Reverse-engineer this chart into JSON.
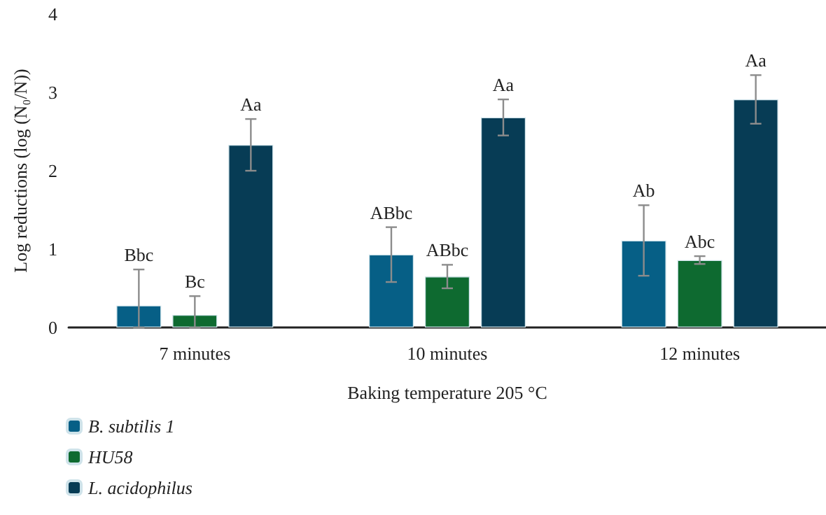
{
  "chart_data": {
    "type": "bar",
    "xlabel": "Baking temperature 205 °C",
    "ylabel": "Log reductions (log (N₀/N))",
    "categories": [
      "7 minutes",
      "10 minutes",
      "12 minutes"
    ],
    "series": [
      {
        "name": "B. subtilis 1",
        "color": "#065f86",
        "values": [
          0.28,
          0.93,
          1.11
        ],
        "errors": [
          [
            0,
            0.74
          ],
          0.35,
          0.45
        ],
        "value_labels": [
          "Bbc",
          "ABbc",
          "Ab"
        ]
      },
      {
        "name": "HU58",
        "color": "#0e6a30",
        "values": [
          0.16,
          0.65,
          0.86
        ],
        "errors": [
          [
            0,
            0.4
          ],
          0.15,
          0.05
        ],
        "value_labels": [
          "Bc",
          "ABbc",
          "Abc"
        ]
      },
      {
        "name": "L. acidophilus",
        "color": "#073c55",
        "values": [
          2.33,
          2.68,
          2.91
        ],
        "errors": [
          0.33,
          0.23,
          0.31
        ],
        "value_labels": [
          "Aa",
          "Aa",
          "Aa"
        ]
      }
    ],
    "ylim": [
      0,
      4
    ],
    "yticks": [
      0,
      1,
      2,
      3,
      4
    ],
    "grid": false,
    "legend": "bottom left"
  }
}
